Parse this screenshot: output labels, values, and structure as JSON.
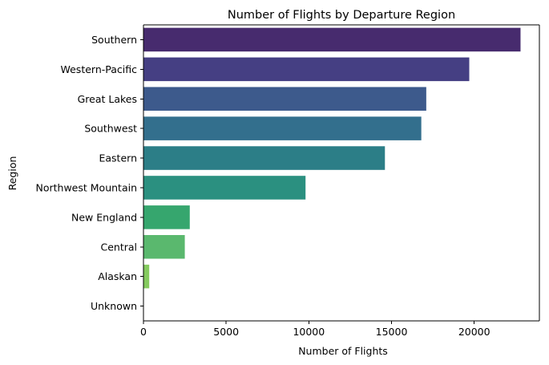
{
  "chart_data": {
    "type": "bar",
    "orientation": "horizontal",
    "title": "Number of Flights by Departure Region",
    "xlabel": "Number of Flights",
    "ylabel": "Region",
    "categories": [
      "Southern",
      "Western-Pacific",
      "Great Lakes",
      "Southwest",
      "Eastern",
      "Northwest Mountain",
      "New England",
      "Central",
      "Alaskan",
      "Unknown"
    ],
    "values": [
      22800,
      19700,
      17100,
      16800,
      14600,
      9800,
      2800,
      2500,
      350,
      10
    ],
    "xlim": [
      0,
      23940
    ],
    "xticks": [
      0,
      5000,
      10000,
      15000,
      20000
    ],
    "xtick_labels": [
      "0",
      "5000",
      "10000",
      "15000",
      "20000"
    ],
    "grid": false,
    "legend": "none",
    "colors": [
      "#472B6E",
      "#453F83",
      "#3D5A8C",
      "#336F8D",
      "#2C7E87",
      "#2B9080",
      "#36A66E",
      "#5AB86E",
      "#85CA5F",
      "#B8DC34"
    ]
  }
}
